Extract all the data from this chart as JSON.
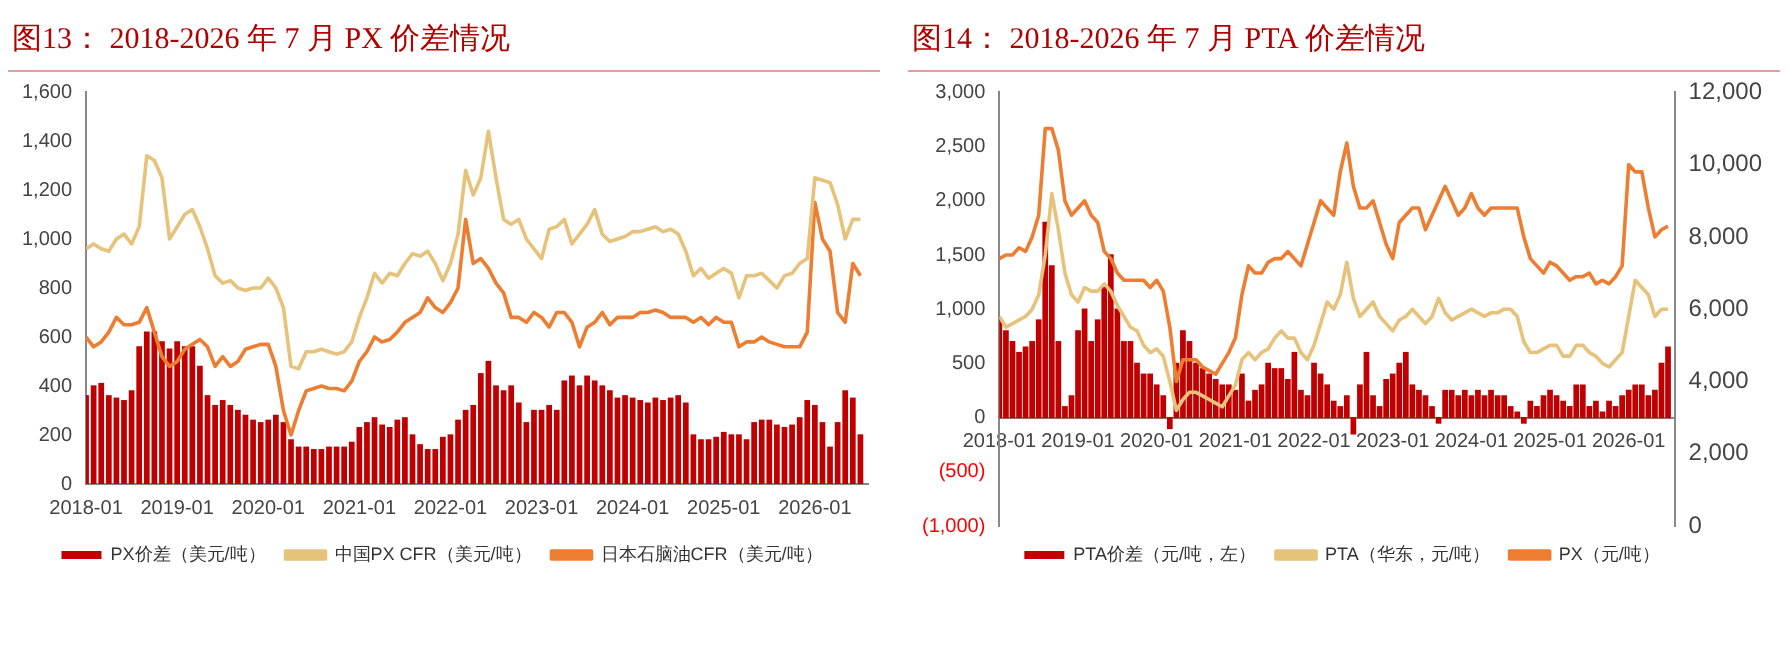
{
  "chart_data": [
    {
      "type": "bar",
      "title": "图13：  2018-2026 年 7 月 PX 价差情况",
      "legend": "bottom",
      "grid": false,
      "x": [
        "2018-01",
        "2018-02",
        "2018-03",
        "2018-04",
        "2018-05",
        "2018-06",
        "2018-07",
        "2018-08",
        "2018-09",
        "2018-10",
        "2018-11",
        "2018-12",
        "2019-01",
        "2019-02",
        "2019-03",
        "2019-04",
        "2019-05",
        "2019-06",
        "2019-07",
        "2019-08",
        "2019-09",
        "2019-10",
        "2019-11",
        "2019-12",
        "2020-01",
        "2020-02",
        "2020-03",
        "2020-04",
        "2020-05",
        "2020-06",
        "2020-07",
        "2020-08",
        "2020-09",
        "2020-10",
        "2020-11",
        "2020-12",
        "2021-01",
        "2021-02",
        "2021-03",
        "2021-04",
        "2021-05",
        "2021-06",
        "2021-07",
        "2021-08",
        "2021-09",
        "2021-10",
        "2021-11",
        "2021-12",
        "2022-01",
        "2022-02",
        "2022-03",
        "2022-04",
        "2022-05",
        "2022-06",
        "2022-07",
        "2022-08",
        "2022-09",
        "2022-10",
        "2022-11",
        "2022-12",
        "2023-01",
        "2023-02",
        "2023-03",
        "2023-04",
        "2023-05",
        "2023-06",
        "2023-07",
        "2023-08",
        "2023-09",
        "2023-10",
        "2023-11",
        "2023-12",
        "2024-01",
        "2024-02",
        "2024-03",
        "2024-04",
        "2024-05",
        "2024-06",
        "2024-07",
        "2024-08",
        "2024-09",
        "2024-10",
        "2024-11",
        "2024-12",
        "2025-01",
        "2025-02",
        "2025-03",
        "2025-04",
        "2025-05",
        "2025-06",
        "2025-07",
        "2025-08",
        "2025-09",
        "2025-10",
        "2025-11",
        "2025-12",
        "2026-01",
        "2026-02",
        "2026-03",
        "2026-04",
        "2026-05",
        "2026-06",
        "2026-07"
      ],
      "xlim": [
        "2018-01",
        "2026-08"
      ],
      "xticks": [
        "2018-01",
        "2019-01",
        "2020-01",
        "2021-01",
        "2022-01",
        "2023-01",
        "2024-01",
        "2025-01",
        "2026-01"
      ],
      "ylim": [
        0,
        1600
      ],
      "yticks": [
        {
          "value": 0,
          "label": "0"
        },
        {
          "value": 200,
          "label": "200"
        },
        {
          "value": 400,
          "label": "400"
        },
        {
          "value": 600,
          "label": "600"
        },
        {
          "value": 800,
          "label": "800"
        },
        {
          "value": 1000,
          "label": "1,000"
        },
        {
          "value": 1200,
          "label": "1,200"
        },
        {
          "value": 1400,
          "label": "1,400"
        },
        {
          "value": 1600,
          "label": "1,600"
        }
      ],
      "series": [
        {
          "name": "PX价差（美元/吨）",
          "color": "#c00000",
          "values": [
            360,
            400,
            410,
            360,
            350,
            340,
            380,
            560,
            620,
            620,
            580,
            550,
            580,
            560,
            560,
            480,
            360,
            320,
            340,
            320,
            300,
            280,
            260,
            250,
            260,
            280,
            250,
            180,
            150,
            150,
            140,
            140,
            150,
            150,
            150,
            170,
            230,
            250,
            270,
            240,
            230,
            260,
            270,
            200,
            160,
            140,
            140,
            190,
            200,
            260,
            300,
            320,
            450,
            500,
            400,
            380,
            400,
            330,
            250,
            300,
            300,
            320,
            300,
            420,
            440,
            400,
            440,
            420,
            400,
            380,
            350,
            360,
            350,
            340,
            330,
            350,
            340,
            350,
            360,
            330,
            200,
            180,
            180,
            190,
            210,
            200,
            200,
            180,
            250,
            260,
            260,
            240,
            230,
            240,
            270,
            340,
            320,
            250,
            150,
            250,
            380,
            350,
            200
          ]
        },
        {
          "name": "中国PX CFR（美元/吨）",
          "type": "line",
          "color": "#e6c27a",
          "values": [
            960,
            980,
            960,
            950,
            1000,
            1020,
            980,
            1050,
            1340,
            1320,
            1250,
            1000,
            1050,
            1100,
            1120,
            1050,
            960,
            850,
            820,
            830,
            800,
            790,
            800,
            800,
            840,
            800,
            720,
            480,
            470,
            540,
            540,
            550,
            540,
            530,
            540,
            580,
            680,
            760,
            860,
            820,
            860,
            850,
            900,
            940,
            930,
            950,
            900,
            830,
            900,
            1020,
            1280,
            1180,
            1250,
            1440,
            1250,
            1080,
            1060,
            1080,
            1000,
            960,
            920,
            1040,
            1050,
            1080,
            980,
            1020,
            1060,
            1120,
            1020,
            990,
            1000,
            1010,
            1030,
            1030,
            1040,
            1050,
            1030,
            1040,
            1020,
            950,
            850,
            880,
            840,
            860,
            880,
            860,
            760,
            850,
            850,
            860,
            830,
            800,
            850,
            860,
            900,
            920,
            1250,
            1240,
            1230,
            1140,
            1000,
            1080,
            1080
          ]
        },
        {
          "name": "日本石脑油CFR（美元/吨）",
          "type": "line",
          "color": "#ed7d31",
          "values": [
            600,
            560,
            580,
            620,
            680,
            650,
            650,
            660,
            720,
            620,
            520,
            480,
            500,
            550,
            570,
            590,
            560,
            480,
            520,
            480,
            500,
            550,
            560,
            570,
            570,
            480,
            300,
            200,
            300,
            380,
            390,
            400,
            390,
            390,
            380,
            420,
            500,
            540,
            600,
            580,
            590,
            620,
            660,
            680,
            700,
            760,
            720,
            700,
            740,
            800,
            1080,
            900,
            920,
            880,
            820,
            780,
            680,
            680,
            660,
            700,
            680,
            640,
            700,
            700,
            660,
            560,
            640,
            660,
            700,
            650,
            680,
            680,
            680,
            700,
            700,
            710,
            700,
            680,
            680,
            680,
            660,
            680,
            650,
            680,
            660,
            660,
            560,
            580,
            580,
            600,
            580,
            570,
            560,
            560,
            560,
            620,
            1150,
            1000,
            950,
            700,
            660,
            900,
            850
          ]
        }
      ]
    },
    {
      "type": "bar",
      "title": "图14：  2018-2026 年 7 月 PTA 价差情况",
      "legend": "bottom",
      "grid": false,
      "x": [
        "2018-01",
        "2018-02",
        "2018-03",
        "2018-04",
        "2018-05",
        "2018-06",
        "2018-07",
        "2018-08",
        "2018-09",
        "2018-10",
        "2018-11",
        "2018-12",
        "2019-01",
        "2019-02",
        "2019-03",
        "2019-04",
        "2019-05",
        "2019-06",
        "2019-07",
        "2019-08",
        "2019-09",
        "2019-10",
        "2019-11",
        "2019-12",
        "2020-01",
        "2020-02",
        "2020-03",
        "2020-04",
        "2020-05",
        "2020-06",
        "2020-07",
        "2020-08",
        "2020-09",
        "2020-10",
        "2020-11",
        "2020-12",
        "2021-01",
        "2021-02",
        "2021-03",
        "2021-04",
        "2021-05",
        "2021-06",
        "2021-07",
        "2021-08",
        "2021-09",
        "2021-10",
        "2021-11",
        "2021-12",
        "2022-01",
        "2022-02",
        "2022-03",
        "2022-04",
        "2022-05",
        "2022-06",
        "2022-07",
        "2022-08",
        "2022-09",
        "2022-10",
        "2022-11",
        "2022-12",
        "2023-01",
        "2023-02",
        "2023-03",
        "2023-04",
        "2023-05",
        "2023-06",
        "2023-07",
        "2023-08",
        "2023-09",
        "2023-10",
        "2023-11",
        "2023-12",
        "2024-01",
        "2024-02",
        "2024-03",
        "2024-04",
        "2024-05",
        "2024-06",
        "2024-07",
        "2024-08",
        "2024-09",
        "2024-10",
        "2024-11",
        "2024-12",
        "2025-01",
        "2025-02",
        "2025-03",
        "2025-04",
        "2025-05",
        "2025-06",
        "2025-07",
        "2025-08",
        "2025-09",
        "2025-10",
        "2025-11",
        "2025-12",
        "2026-01",
        "2026-02",
        "2026-03",
        "2026-04",
        "2026-05",
        "2026-06",
        "2026-07"
      ],
      "xlim": [
        "2018-01",
        "2026-08"
      ],
      "xticks": [
        "2018-01",
        "2019-01",
        "2020-01",
        "2021-01",
        "2022-01",
        "2023-01",
        "2024-01",
        "2025-01",
        "2026-01"
      ],
      "ylim": [
        -1000,
        3000
      ],
      "yticks": [
        {
          "value": -1000,
          "label": "(1,000)"
        },
        {
          "value": -500,
          "label": "(500)"
        },
        {
          "value": 0,
          "label": "0"
        },
        {
          "value": 500,
          "label": "500"
        },
        {
          "value": 1000,
          "label": "1,000"
        },
        {
          "value": 1500,
          "label": "1,500"
        },
        {
          "value": 2000,
          "label": "2,000"
        },
        {
          "value": 2500,
          "label": "2,500"
        },
        {
          "value": 3000,
          "label": "3,000"
        }
      ],
      "y2lim": [
        0,
        12000
      ],
      "y2ticks": [
        {
          "value": 0,
          "label": "0"
        },
        {
          "value": 2000,
          "label": "2,000"
        },
        {
          "value": 4000,
          "label": "4,000"
        },
        {
          "value": 6000,
          "label": "6,000"
        },
        {
          "value": 8000,
          "label": "8,000"
        },
        {
          "value": 10000,
          "label": "10,000"
        },
        {
          "value": 12000,
          "label": "12,000"
        }
      ],
      "series": [
        {
          "name": "PTA价差（元/吨，左）",
          "color": "#c00000",
          "values": [
            900,
            800,
            700,
            600,
            650,
            700,
            900,
            1800,
            1400,
            700,
            100,
            200,
            800,
            1000,
            700,
            900,
            1200,
            1500,
            1000,
            700,
            700,
            500,
            400,
            400,
            300,
            200,
            -100,
            500,
            800,
            700,
            500,
            450,
            400,
            350,
            300,
            300,
            250,
            400,
            150,
            250,
            300,
            500,
            450,
            450,
            350,
            600,
            250,
            200,
            500,
            400,
            300,
            150,
            100,
            200,
            -150,
            300,
            600,
            200,
            100,
            350,
            400,
            500,
            600,
            300,
            250,
            200,
            100,
            -50,
            250,
            250,
            200,
            250,
            200,
            250,
            200,
            250,
            200,
            200,
            100,
            50,
            -50,
            150,
            100,
            200,
            250,
            200,
            150,
            100,
            300,
            300,
            100,
            150,
            50,
            150,
            100,
            200,
            250,
            300,
            300,
            200,
            250,
            500,
            650
          ]
        },
        {
          "name": "PTA（华东，元/吨）",
          "type": "line",
          "axis": "y2",
          "color": "#e6c27a",
          "values": [
            5800,
            5500,
            5600,
            5700,
            5800,
            6000,
            6400,
            7500,
            9200,
            8200,
            7000,
            6400,
            6200,
            6600,
            6500,
            6500,
            6700,
            6500,
            6100,
            5800,
            5500,
            5400,
            5000,
            4800,
            4900,
            4700,
            4000,
            3200,
            3500,
            3700,
            3700,
            3600,
            3500,
            3400,
            3300,
            3600,
            3900,
            4600,
            4800,
            4600,
            4800,
            4900,
            5200,
            5400,
            5200,
            5200,
            4800,
            4600,
            5000,
            5600,
            6200,
            6000,
            6400,
            7300,
            6300,
            5800,
            6000,
            6200,
            5800,
            5600,
            5400,
            5700,
            5800,
            6000,
            5800,
            5600,
            5800,
            6300,
            5900,
            5700,
            5800,
            5900,
            6000,
            5900,
            5800,
            5900,
            5900,
            6000,
            6000,
            5800,
            5100,
            4800,
            4800,
            4900,
            5000,
            5000,
            4700,
            4700,
            5000,
            5000,
            4800,
            4700,
            4500,
            4400,
            4600,
            4800,
            5800,
            6800,
            6600,
            6400,
            5800,
            6000,
            6000
          ]
        },
        {
          "name": "PX（元/吨）",
          "type": "line",
          "axis": "y2",
          "color": "#ed7d31",
          "values": [
            7400,
            7500,
            7500,
            7700,
            7600,
            8000,
            8600,
            11000,
            11000,
            10400,
            9000,
            8600,
            8800,
            9000,
            8600,
            8400,
            7600,
            7400,
            7000,
            6800,
            6800,
            6800,
            6800,
            6600,
            6800,
            6500,
            5500,
            4000,
            4600,
            4600,
            4600,
            4400,
            4300,
            4200,
            4500,
            4800,
            5200,
            6400,
            7200,
            7000,
            7000,
            7300,
            7400,
            7400,
            7600,
            7400,
            7200,
            7800,
            8400,
            9000,
            8800,
            8600,
            9800,
            10600,
            9400,
            8800,
            8800,
            9000,
            8400,
            7800,
            7400,
            8400,
            8600,
            8800,
            8800,
            8200,
            8600,
            9000,
            9400,
            9000,
            8600,
            8800,
            9200,
            8800,
            8600,
            8800,
            8800,
            8800,
            8800,
            8800,
            8000,
            7400,
            7200,
            7000,
            7300,
            7200,
            7000,
            6800,
            6900,
            6900,
            7000,
            6700,
            6800,
            6700,
            6900,
            7200,
            10000,
            9800,
            9800,
            8800,
            8000,
            8200,
            8300
          ]
        }
      ]
    }
  ]
}
